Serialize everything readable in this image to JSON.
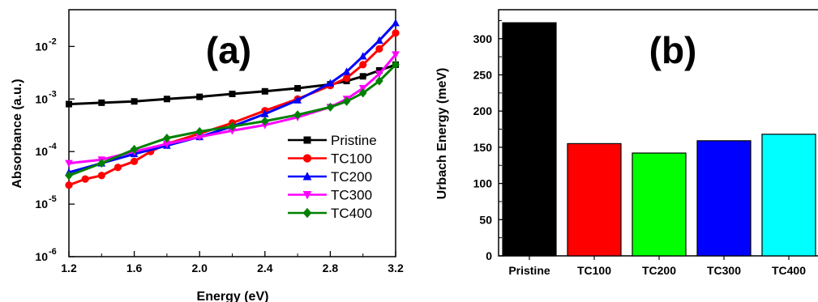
{
  "chart_data": [
    {
      "type": "line",
      "panel_label": "(a)",
      "xlabel": "Energy (eV)",
      "ylabel": "Absorbance (a.u.)",
      "xlim": [
        1.2,
        3.2
      ],
      "ylim": [
        1e-06,
        0.05
      ],
      "y_scale": "log",
      "x_ticks": [
        1.2,
        1.6,
        2.0,
        2.4,
        2.8,
        3.2
      ],
      "x_tick_labels": [
        "1.2",
        "1.6",
        "2.0",
        "2.4",
        "2.8",
        "3.2"
      ],
      "y_ticks": [
        1e-06,
        1e-05,
        0.0001,
        0.001,
        0.01
      ],
      "y_tick_labels": [
        {
          "base": "10",
          "exp": "-6"
        },
        {
          "base": "10",
          "exp": "-5"
        },
        {
          "base": "10",
          "exp": "-4"
        },
        {
          "base": "10",
          "exp": "-3"
        },
        {
          "base": "10",
          "exp": "-2"
        }
      ],
      "legend_position": "bottom-right",
      "series": [
        {
          "name": "Pristine",
          "color": "#000000",
          "marker": "square",
          "x": [
            1.2,
            1.4,
            1.6,
            1.8,
            2.0,
            2.2,
            2.4,
            2.6,
            2.8,
            2.9,
            3.0,
            3.1,
            3.2
          ],
          "y": [
            0.0008,
            0.00085,
            0.0009,
            0.001,
            0.0011,
            0.00125,
            0.0014,
            0.0016,
            0.0019,
            0.0022,
            0.0027,
            0.0035,
            0.0045
          ]
        },
        {
          "name": "TC100",
          "color": "#ff0000",
          "marker": "circle",
          "x": [
            1.2,
            1.3,
            1.4,
            1.5,
            1.6,
            1.7,
            1.8,
            2.0,
            2.2,
            2.4,
            2.6,
            2.8,
            2.9,
            3.0,
            3.1,
            3.2
          ],
          "y": [
            2.3e-05,
            3e-05,
            3.5e-05,
            5e-05,
            6.5e-05,
            0.0001,
            0.00014,
            0.00022,
            0.00035,
            0.0006,
            0.001,
            0.0018,
            0.0025,
            0.0045,
            0.009,
            0.018
          ]
        },
        {
          "name": "TC200",
          "color": "#0000ff",
          "marker": "triangle-up",
          "x": [
            1.2,
            1.4,
            1.6,
            1.8,
            2.0,
            2.2,
            2.4,
            2.6,
            2.8,
            2.9,
            3.0,
            3.1,
            3.2
          ],
          "y": [
            4e-05,
            6e-05,
            9e-05,
            0.00013,
            0.00019,
            0.0003,
            0.00052,
            0.00095,
            0.002,
            0.0033,
            0.0065,
            0.013,
            0.028
          ]
        },
        {
          "name": "TC300",
          "color": "#ff00ff",
          "marker": "triangle-down",
          "x": [
            1.2,
            1.4,
            1.6,
            1.8,
            2.0,
            2.2,
            2.4,
            2.6,
            2.8,
            2.9,
            3.0,
            3.1,
            3.2
          ],
          "y": [
            6e-05,
            7e-05,
            0.0001,
            0.00014,
            0.00019,
            0.00025,
            0.00032,
            0.00045,
            0.0007,
            0.001,
            0.0016,
            0.003,
            0.007
          ]
        },
        {
          "name": "TC400",
          "color": "#008000",
          "marker": "diamond",
          "x": [
            1.2,
            1.4,
            1.6,
            1.8,
            2.0,
            2.2,
            2.4,
            2.6,
            2.8,
            2.9,
            3.0,
            3.1,
            3.2
          ],
          "y": [
            3.5e-05,
            6e-05,
            0.00011,
            0.00018,
            0.00024,
            0.0003,
            0.00038,
            0.0005,
            0.0007,
            0.0009,
            0.0013,
            0.0022,
            0.0045
          ]
        }
      ]
    },
    {
      "type": "bar",
      "panel_label": "(b)",
      "xlabel": "",
      "ylabel": "Urbach Energy (meV)",
      "ylim": [
        0,
        340
      ],
      "y_ticks": [
        0,
        50,
        100,
        150,
        200,
        250,
        300
      ],
      "categories": [
        "Pristine",
        "TC100",
        "TC200",
        "TC300",
        "TC400"
      ],
      "values": [
        322,
        155,
        142,
        159,
        168
      ],
      "colors": [
        "#000000",
        "#ff0000",
        "#00ff00",
        "#0000ff",
        "#00ffff"
      ]
    }
  ]
}
